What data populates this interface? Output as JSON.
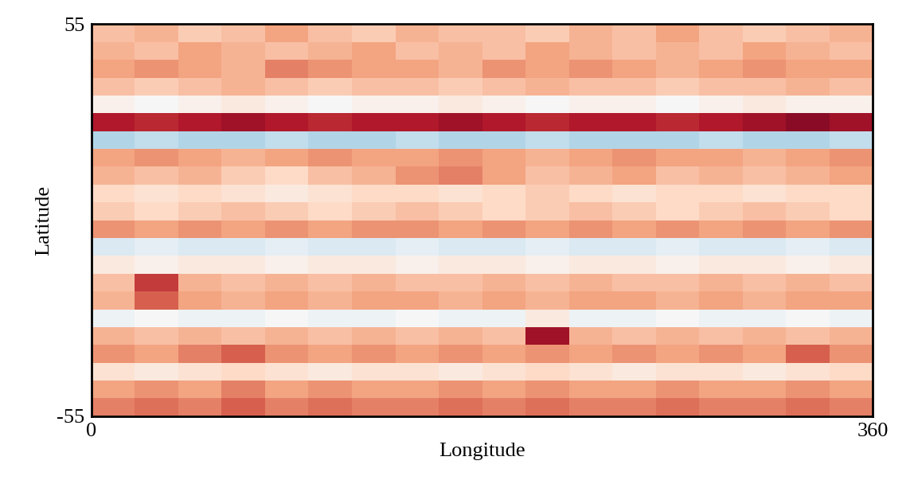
{
  "chart_data": {
    "type": "heatmap",
    "x_label": "Longitude",
    "y_label": "Latitude",
    "xlim": [
      0,
      360
    ],
    "ylim": [
      -55,
      55
    ],
    "xticks": [
      0,
      360
    ],
    "yticks": [
      -55,
      55
    ],
    "color_range": [
      -1,
      1
    ],
    "lon_edges": [
      0,
      20,
      40,
      60,
      80,
      100,
      120,
      140,
      160,
      180,
      200,
      220,
      240,
      260,
      280,
      300,
      320,
      340,
      360
    ],
    "lat_edges": [
      55,
      50,
      45,
      40,
      35,
      30,
      25,
      20,
      15,
      10,
      5,
      0,
      -5,
      -10,
      -15,
      -20,
      -25,
      -30,
      -35,
      -40,
      -45,
      -50,
      -55
    ],
    "cells": [
      [
        0.3,
        0.35,
        0.25,
        0.3,
        0.4,
        0.3,
        0.25,
        0.35,
        0.3,
        0.3,
        0.25,
        0.35,
        0.3,
        0.4,
        0.3,
        0.25,
        0.3,
        0.35
      ],
      [
        0.35,
        0.3,
        0.4,
        0.35,
        0.3,
        0.35,
        0.4,
        0.3,
        0.35,
        0.3,
        0.4,
        0.35,
        0.3,
        0.35,
        0.3,
        0.4,
        0.35,
        0.3
      ],
      [
        0.4,
        0.45,
        0.4,
        0.35,
        0.5,
        0.45,
        0.4,
        0.4,
        0.35,
        0.45,
        0.4,
        0.45,
        0.4,
        0.35,
        0.4,
        0.45,
        0.4,
        0.4
      ],
      [
        0.3,
        0.25,
        0.3,
        0.35,
        0.3,
        0.25,
        0.3,
        0.3,
        0.25,
        0.3,
        0.35,
        0.3,
        0.3,
        0.25,
        0.3,
        0.3,
        0.35,
        0.3
      ],
      [
        0.05,
        0.0,
        0.05,
        0.1,
        0.05,
        0.0,
        0.05,
        0.05,
        0.1,
        0.05,
        0.0,
        0.05,
        0.05,
        0.0,
        0.05,
        0.1,
        0.05,
        0.05
      ],
      [
        0.8,
        0.75,
        0.8,
        0.85,
        0.8,
        0.75,
        0.8,
        0.8,
        0.85,
        0.8,
        0.75,
        0.8,
        0.8,
        0.75,
        0.8,
        0.85,
        0.9,
        0.85
      ],
      [
        -0.3,
        -0.25,
        -0.3,
        -0.3,
        -0.25,
        -0.3,
        -0.3,
        -0.25,
        -0.3,
        -0.3,
        -0.25,
        -0.3,
        -0.3,
        -0.3,
        -0.25,
        -0.3,
        -0.3,
        -0.25
      ],
      [
        0.4,
        0.45,
        0.4,
        0.35,
        0.4,
        0.45,
        0.4,
        0.4,
        0.45,
        0.4,
        0.35,
        0.4,
        0.45,
        0.4,
        0.4,
        0.35,
        0.4,
        0.45
      ],
      [
        0.35,
        0.3,
        0.35,
        0.25,
        0.2,
        0.3,
        0.35,
        0.45,
        0.5,
        0.4,
        0.3,
        0.35,
        0.4,
        0.3,
        0.35,
        0.3,
        0.35,
        0.4
      ],
      [
        0.2,
        0.15,
        0.2,
        0.15,
        0.1,
        0.15,
        0.2,
        0.2,
        0.15,
        0.2,
        0.25,
        0.2,
        0.15,
        0.2,
        0.2,
        0.15,
        0.2,
        0.2
      ],
      [
        0.25,
        0.2,
        0.25,
        0.3,
        0.25,
        0.2,
        0.25,
        0.3,
        0.25,
        0.2,
        0.25,
        0.3,
        0.25,
        0.2,
        0.25,
        0.3,
        0.25,
        0.2
      ],
      [
        0.45,
        0.4,
        0.45,
        0.4,
        0.45,
        0.4,
        0.45,
        0.45,
        0.4,
        0.45,
        0.4,
        0.45,
        0.4,
        0.45,
        0.4,
        0.45,
        0.4,
        0.45
      ],
      [
        -0.15,
        -0.1,
        -0.15,
        -0.15,
        -0.1,
        -0.15,
        -0.15,
        -0.1,
        -0.15,
        -0.15,
        -0.1,
        -0.15,
        -0.15,
        -0.1,
        -0.15,
        -0.15,
        -0.1,
        -0.15
      ],
      [
        0.1,
        0.05,
        0.1,
        0.1,
        0.05,
        0.1,
        0.1,
        0.05,
        0.1,
        0.1,
        0.05,
        0.1,
        0.1,
        0.05,
        0.1,
        0.1,
        0.05,
        0.1
      ],
      [
        0.3,
        0.7,
        0.35,
        0.3,
        0.35,
        0.3,
        0.35,
        0.3,
        0.3,
        0.35,
        0.3,
        0.35,
        0.3,
        0.3,
        0.35,
        0.3,
        0.35,
        0.3
      ],
      [
        0.35,
        0.6,
        0.4,
        0.35,
        0.4,
        0.35,
        0.4,
        0.4,
        0.35,
        0.4,
        0.35,
        0.4,
        0.4,
        0.35,
        0.4,
        0.35,
        0.4,
        0.4
      ],
      [
        -0.05,
        0.0,
        -0.05,
        -0.05,
        0.0,
        -0.05,
        -0.05,
        0.0,
        -0.05,
        -0.05,
        0.1,
        -0.05,
        -0.05,
        0.0,
        -0.05,
        -0.05,
        0.0,
        -0.05
      ],
      [
        0.35,
        0.3,
        0.35,
        0.3,
        0.35,
        0.3,
        0.35,
        0.3,
        0.35,
        0.3,
        0.85,
        0.35,
        0.3,
        0.35,
        0.3,
        0.35,
        0.3,
        0.35
      ],
      [
        0.45,
        0.4,
        0.5,
        0.6,
        0.45,
        0.4,
        0.45,
        0.4,
        0.45,
        0.4,
        0.45,
        0.4,
        0.45,
        0.4,
        0.45,
        0.4,
        0.6,
        0.45
      ],
      [
        0.15,
        0.1,
        0.15,
        0.2,
        0.15,
        0.1,
        0.15,
        0.15,
        0.1,
        0.15,
        0.2,
        0.15,
        0.1,
        0.15,
        0.15,
        0.1,
        0.15,
        0.2
      ],
      [
        0.4,
        0.45,
        0.4,
        0.5,
        0.4,
        0.45,
        0.4,
        0.4,
        0.45,
        0.4,
        0.45,
        0.4,
        0.4,
        0.45,
        0.4,
        0.4,
        0.45,
        0.4
      ],
      [
        0.5,
        0.55,
        0.5,
        0.6,
        0.5,
        0.55,
        0.5,
        0.5,
        0.55,
        0.5,
        0.55,
        0.5,
        0.5,
        0.55,
        0.5,
        0.5,
        0.55,
        0.5
      ]
    ]
  }
}
